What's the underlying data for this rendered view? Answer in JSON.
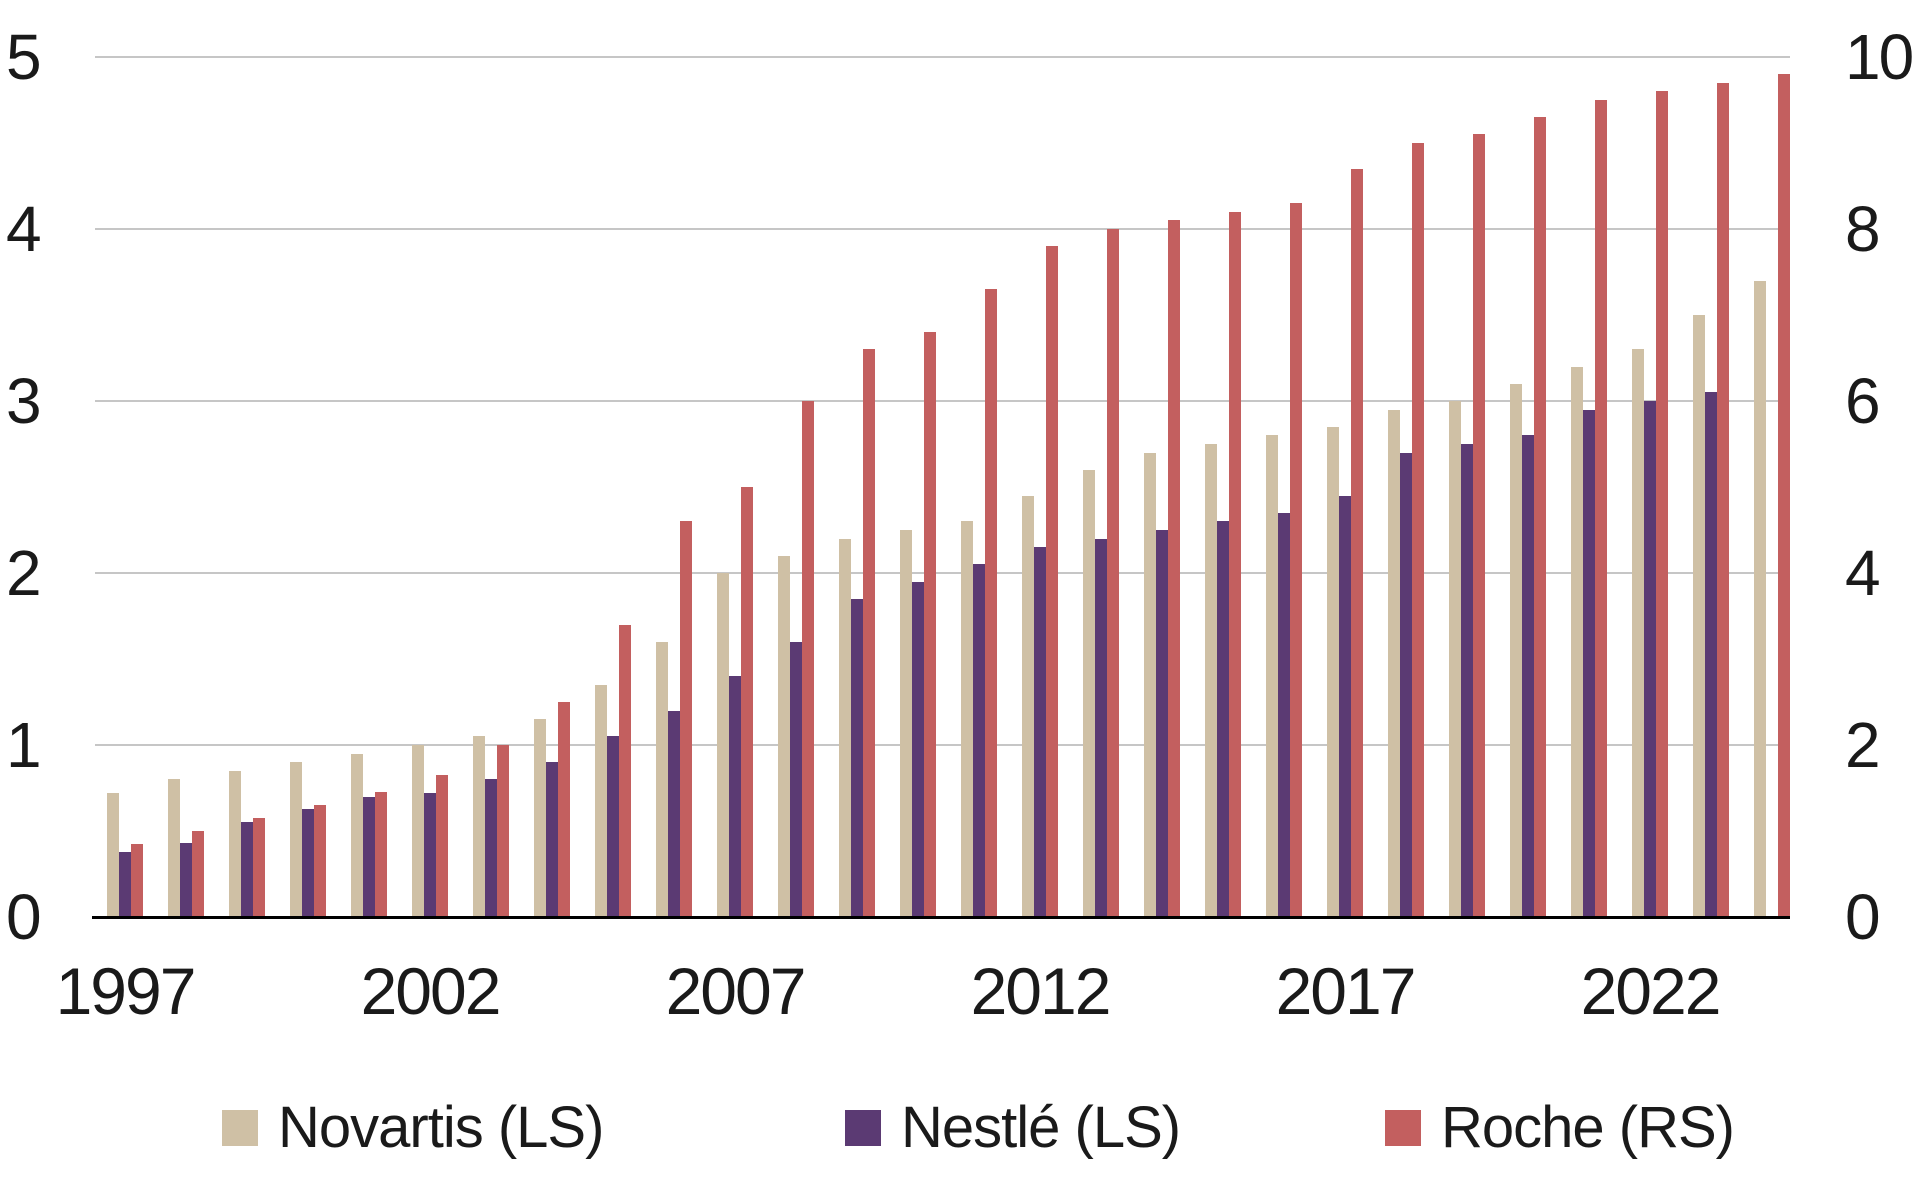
{
  "chart_data": {
    "type": "bar",
    "title": "",
    "categories": [
      "1997",
      "1998",
      "1999",
      "2000",
      "2001",
      "2002",
      "2003",
      "2004",
      "2005",
      "2006",
      "2007",
      "2008",
      "2009",
      "2010",
      "2011",
      "2012",
      "2013",
      "2014",
      "2015",
      "2016",
      "2017",
      "2018",
      "2019",
      "2020",
      "2021",
      "2022",
      "2023",
      "2024"
    ],
    "series": [
      {
        "name": "Novartis (LS)",
        "axis": "left",
        "color": "#cfc0a5",
        "values": [
          0.72,
          0.8,
          0.85,
          0.9,
          0.95,
          1.0,
          1.05,
          1.15,
          1.35,
          1.6,
          2.0,
          2.1,
          2.2,
          2.25,
          2.3,
          2.45,
          2.6,
          2.7,
          2.75,
          2.8,
          2.85,
          2.95,
          3.0,
          3.1,
          3.2,
          3.3,
          3.5,
          3.7
        ]
      },
      {
        "name": "Nestlé (LS)",
        "axis": "left",
        "color": "#5b3a73",
        "values": [
          0.38,
          0.43,
          0.55,
          0.63,
          0.7,
          0.72,
          0.8,
          0.9,
          1.05,
          1.2,
          1.4,
          1.6,
          1.85,
          1.95,
          2.05,
          2.15,
          2.2,
          2.25,
          2.3,
          2.35,
          2.45,
          2.7,
          2.75,
          2.8,
          2.95,
          3.0,
          3.05,
          null
        ]
      },
      {
        "name": "Roche (RS)",
        "axis": "right",
        "color": "#c35f5f",
        "values": [
          0.85,
          1.0,
          1.15,
          1.3,
          1.45,
          1.65,
          2.0,
          2.5,
          3.4,
          4.6,
          5.0,
          6.0,
          6.6,
          6.8,
          7.3,
          7.8,
          8.0,
          8.1,
          8.2,
          8.3,
          8.7,
          9.0,
          9.1,
          9.3,
          9.5,
          9.6,
          9.7,
          9.8
        ]
      }
    ],
    "left_axis": {
      "range": [
        0,
        5
      ],
      "ticks": [
        "0",
        "1",
        "2",
        "3",
        "4",
        "5"
      ]
    },
    "right_axis": {
      "range": [
        0,
        10
      ],
      "ticks": [
        "0",
        "2",
        "4",
        "6",
        "8",
        "10"
      ]
    },
    "x_tick_labels": [
      "1997",
      "2002",
      "2007",
      "2012",
      "2017",
      "2022"
    ],
    "grid": true,
    "legend_position": "bottom"
  },
  "legend": {
    "items": [
      {
        "label": "Novartis (LS)",
        "color": "#cfc0a5"
      },
      {
        "label": "Nestlé (LS)",
        "color": "#5b3a73"
      },
      {
        "label": "Roche (RS)",
        "color": "#c35f5f"
      }
    ]
  },
  "colors": {
    "background": "#ffffff",
    "text": "#1a1a1a",
    "gridline": "#c6c6c6",
    "axis_line": "#000000"
  }
}
